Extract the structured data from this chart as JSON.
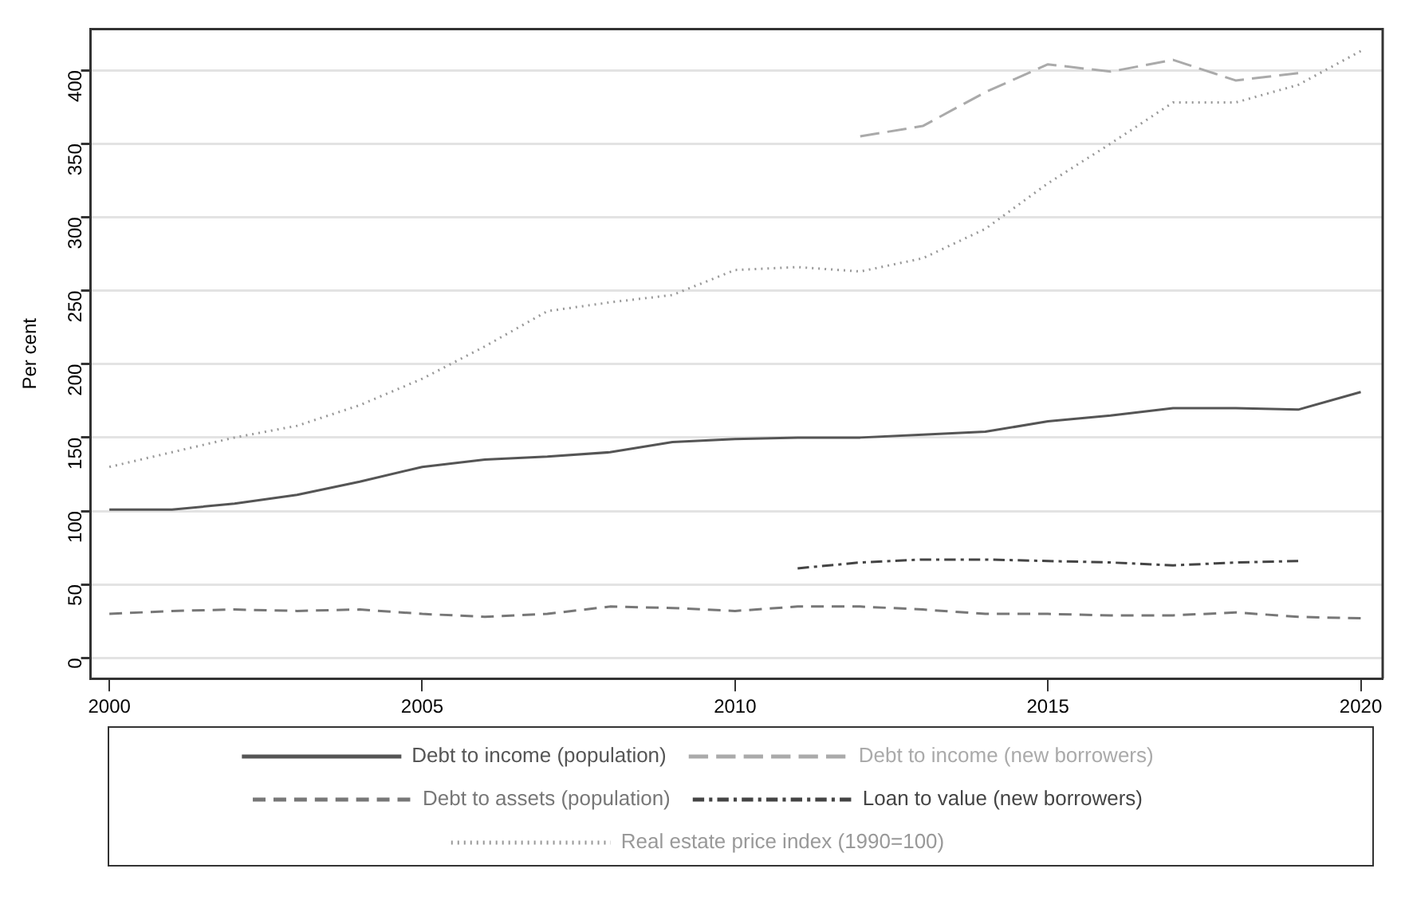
{
  "chart_data": {
    "type": "line",
    "ylabel": "Per cent",
    "x": [
      2000,
      2001,
      2002,
      2003,
      2004,
      2005,
      2006,
      2007,
      2008,
      2009,
      2010,
      2011,
      2012,
      2013,
      2014,
      2015,
      2016,
      2017,
      2018,
      2019,
      2020
    ],
    "series": [
      {
        "name": "Debt to income (population)",
        "color": "#555555",
        "line_style": "solid",
        "values": [
          101,
          101,
          105,
          111,
          120,
          130,
          135,
          137,
          140,
          147,
          149,
          150,
          150,
          152,
          154,
          161,
          165,
          170,
          170,
          169,
          181
        ]
      },
      {
        "name": "Debt to income (new borrowers)",
        "color": "#aaaaaa",
        "line_style": "dashed",
        "x": [
          2012,
          2013,
          2014,
          2015,
          2016,
          2017,
          2018,
          2019
        ],
        "values": [
          355,
          362,
          385,
          404,
          399,
          407,
          393,
          398
        ]
      },
      {
        "name": "Debt to assets (population)",
        "color": "#777777",
        "line_style": "dashed",
        "values": [
          30,
          32,
          33,
          32,
          33,
          30,
          28,
          30,
          35,
          34,
          32,
          35,
          35,
          33,
          30,
          30,
          29,
          29,
          31,
          28,
          27
        ]
      },
      {
        "name": "Loan to value (new borrowers)",
        "color": "#444444",
        "line_style": "dashed",
        "x": [
          2011,
          2012,
          2013,
          2014,
          2015,
          2016,
          2017,
          2018,
          2019
        ],
        "values": [
          61,
          65,
          67,
          67,
          66,
          65,
          63,
          65,
          66
        ]
      },
      {
        "name": "Real estate price index (1990=100)",
        "color": "#999999",
        "line_style": "dotted",
        "values": [
          130,
          140,
          150,
          158,
          172,
          190,
          212,
          236,
          242,
          247,
          264,
          266,
          263,
          272,
          292,
          323,
          350,
          378,
          378,
          390,
          413
        ]
      }
    ],
    "xlim": [
      1999.7,
      2020.35
    ],
    "xticks": [
      2000,
      2005,
      2010,
      2015,
      2020
    ],
    "ylim": [
      -14,
      428
    ],
    "yticks": [
      0,
      50,
      100,
      150,
      200,
      250,
      300,
      350,
      400
    ],
    "grid": "y",
    "legend": "bottom"
  }
}
